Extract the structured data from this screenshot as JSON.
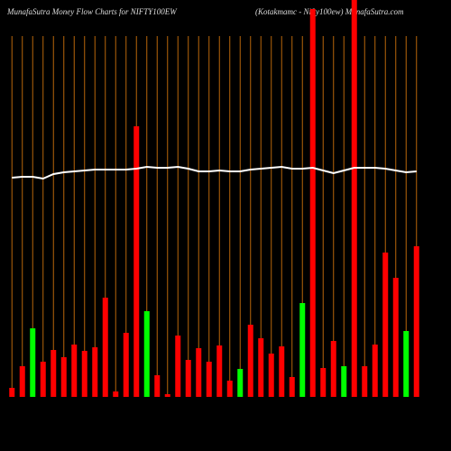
{
  "chart_data": {
    "type": "bar",
    "title": "MunafaSutra  Money Flow  Charts for NIFTY100EW",
    "subtitle": "(Kotakmamc - Nifty100ew) MunafaSutra.com",
    "categories": [
      null,
      null,
      null,
      null,
      null,
      null,
      null,
      null,
      null,
      null,
      null,
      null,
      null,
      null,
      null,
      null,
      null,
      null,
      null,
      null,
      null,
      null,
      null,
      null,
      null,
      null,
      null,
      null,
      null,
      null,
      null,
      null,
      null,
      null,
      null,
      null,
      null,
      null,
      null,
      null
    ],
    "values": [
      10,
      34,
      76,
      39,
      52,
      44,
      58,
      51,
      55,
      110,
      6,
      71,
      300,
      95,
      24,
      3,
      68,
      41,
      54,
      39,
      57,
      18,
      31,
      80,
      65,
      48,
      56,
      22,
      104,
      430,
      32,
      62,
      34,
      440,
      34,
      58,
      160,
      132,
      73,
      167
    ],
    "colors": [
      "red",
      "red",
      "lime",
      "red",
      "red",
      "red",
      "red",
      "red",
      "red",
      "red",
      "red",
      "red",
      "red",
      "lime",
      "red",
      "red",
      "red",
      "red",
      "red",
      "red",
      "red",
      "red",
      "lime",
      "red",
      "red",
      "red",
      "red",
      "red",
      "lime",
      "red",
      "red",
      "red",
      "lime",
      "red",
      "red",
      "red",
      "red",
      "red",
      "lime",
      "red"
    ],
    "line": {
      "color": "#ffffff",
      "values": [
        243,
        244,
        244,
        242,
        247,
        249,
        250,
        251,
        252,
        252,
        252,
        252,
        253,
        255,
        254,
        254,
        255,
        253,
        250,
        250,
        251,
        250,
        250,
        252,
        253,
        254,
        255,
        253,
        253,
        254,
        251,
        248,
        251,
        254,
        254,
        254,
        253,
        251,
        249,
        250
      ]
    },
    "ylim": [
      0,
      440
    ],
    "grid_color": "#b8660b"
  }
}
